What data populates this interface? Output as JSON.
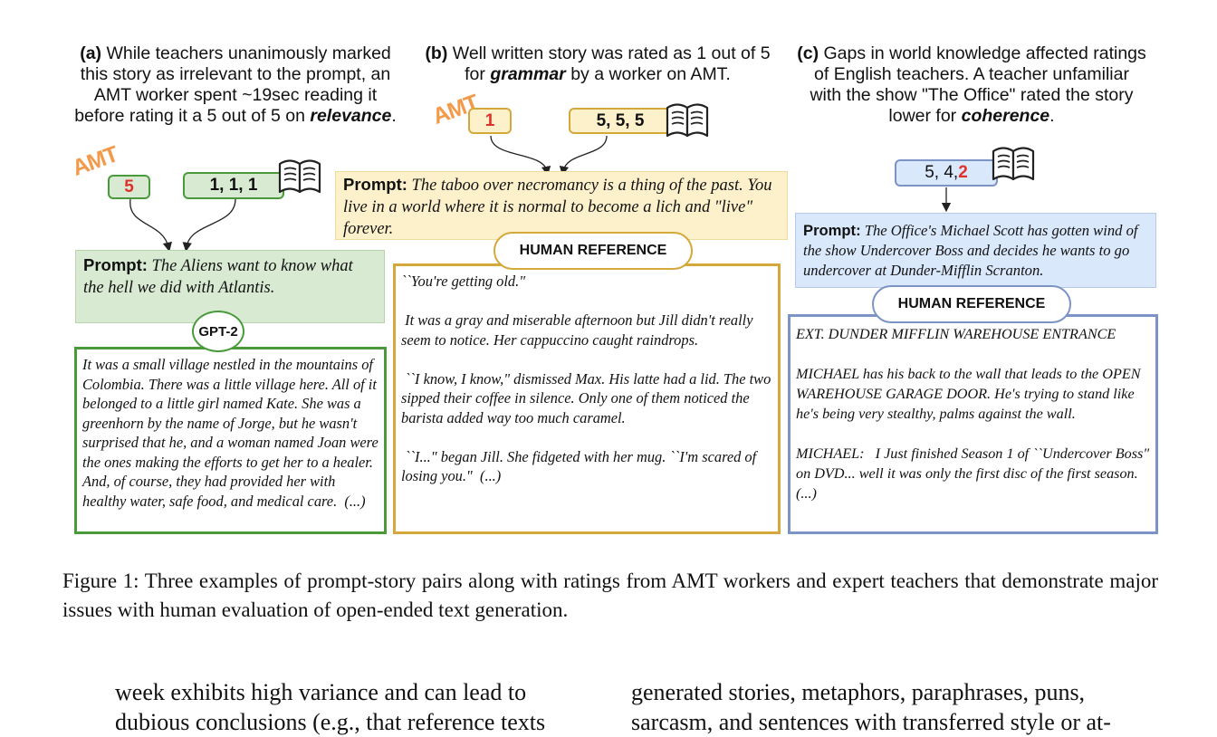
{
  "panels": {
    "a": {
      "caption_lines": [
        {
          "pre": "",
          "bold_label": "(a)",
          "text": " While teachers unanimously marked",
          "emph": "",
          "post": ""
        },
        {
          "pre": "this story as irrelevant to the prompt, an",
          "bold_label": "",
          "text": "",
          "emph": "",
          "post": ""
        },
        {
          "pre": "AMT worker spent ~19sec reading it",
          "bold_label": "",
          "text": "",
          "emph": "",
          "post": ""
        },
        {
          "pre": "before rating it a 5 out of 5 on ",
          "bold_label": "",
          "text": "",
          "emph": "relevance",
          "post": "."
        }
      ],
      "amt_label": "AMT",
      "amt_rating": "5",
      "teacher_ratings": "1, 1, 1",
      "prompt_label": "Prompt:",
      "prompt_text": " The Aliens want to know what the hell we did with Atlantis.",
      "story_tag": "GPT-2",
      "story_paragraphs": [
        "It was a small village nestled in the mountains of Colombia. There was a little village here. All of it belonged to a little girl named Kate. She was a greenhorn by the name of Jorge, but he wasn't surprised that he, and a woman named Joan were the ones making the efforts to get her to a healer. And, of course, they had provided her with healthy water, safe food, and medical care.  (...)"
      ]
    },
    "b": {
      "caption_lines": [
        {
          "pre": "",
          "bold_label": "(b)",
          "text": " Well written story was rated as 1 out of 5",
          "emph": "",
          "post": ""
        },
        {
          "pre": "for ",
          "bold_label": "",
          "text": "",
          "emph": "grammar",
          "post": " by a worker on AMT."
        }
      ],
      "amt_label": "AMT",
      "amt_rating": "1",
      "teacher_ratings": "5, 5, 5",
      "prompt_label": "Prompt:",
      "prompt_text": " The taboo over necromancy is a thing of the past. You live in a world where it is normal to become a lich and \"live\" forever.",
      "story_tag": "HUMAN REFERENCE",
      "story_paragraphs": [
        "``You're getting old.\"",
        " It was a gray and miserable afternoon but Jill didn't really seem to notice. Her cappuccino caught raindrops.",
        " ``I know, I know,\" dismissed Max. His latte had a lid. The two sipped their coffee in silence. Only one of them noticed the barista added way too much caramel.",
        " ``I...\" began Jill. She fidgeted with her mug. ``I'm scared of losing you.\"  (...)"
      ]
    },
    "c": {
      "caption_lines": [
        {
          "pre": "",
          "bold_label": "(c)",
          "text": " Gaps in world knowledge affected ratings",
          "emph": "",
          "post": ""
        },
        {
          "pre": "of English teachers. A teacher unfamiliar",
          "bold_label": "",
          "text": "",
          "emph": "",
          "post": ""
        },
        {
          "pre": "with the show \"The Office\" rated the story",
          "bold_label": "",
          "text": "",
          "emph": "",
          "post": ""
        },
        {
          "pre": "lower for ",
          "bold_label": "",
          "text": "",
          "emph": "coherence",
          "post": "."
        }
      ],
      "teacher_ratings_prefix": "5, 4, ",
      "teacher_ratings_red": "2",
      "prompt_label": "Prompt:",
      "prompt_text": " The Office's Michael Scott has gotten wind of the show Undercover Boss and decides he wants to go undercover at Dunder-Mifflin Scranton.",
      "story_tag": "HUMAN REFERENCE",
      "story_paragraphs": [
        "EXT. DUNDER MIFFLIN WAREHOUSE ENTRANCE",
        "MICHAEL has his back to the wall that leads to the OPEN WAREHOUSE GARAGE DOOR. He's trying to stand like he's being very stealthy, palms against the wall.",
        "MICHAEL:   I Just finished Season 1 of ``Undercover Boss\" on DVD... well it was only the first disc of the first season.  (...)"
      ]
    }
  },
  "colors": {
    "green_fill": "#d9ead3",
    "green_border": "#4a9a3b",
    "yellow_fill": "#fdf1cc",
    "yellow_border": "#d4a83a",
    "blue_fill": "#dae8fc",
    "blue_border": "#7c93c6",
    "amt_orange": "#f39a4a",
    "red": "#e0302a"
  },
  "icons": [
    "book-icon"
  ],
  "figure_caption": "Figure 1: Three examples of prompt-story pairs along with ratings from AMT workers and expert teachers that demonstrate major issues with human evaluation of open-ended text generation.",
  "body": {
    "left_lines": [
      "week exhibits high variance and can lead to",
      "dubious conclusions (e.g., that reference texts"
    ],
    "right_lines": [
      "generated stories, metaphors, paraphrases, puns,",
      "sarcasm, and sentences with transferred style or at-"
    ]
  }
}
